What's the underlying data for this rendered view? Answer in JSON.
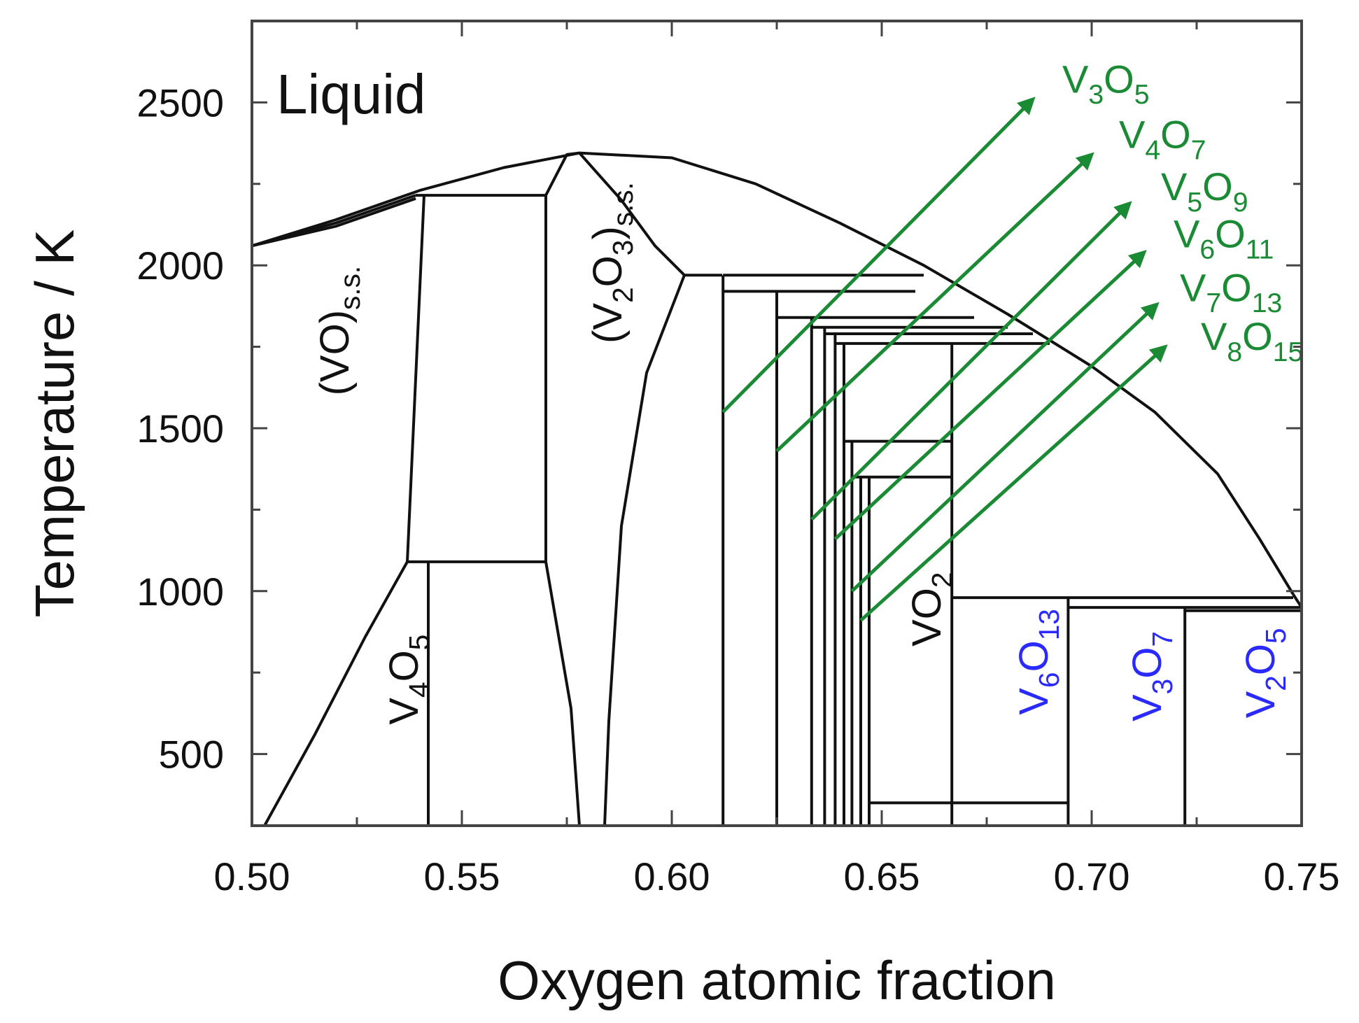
{
  "chart_data": {
    "type": "line",
    "title": "",
    "xlabel": "Oxygen atomic fraction",
    "ylabel": "Temperature / K",
    "xlim": [
      0.5,
      0.75
    ],
    "ylim": [
      280,
      2750
    ],
    "xticks": [
      0.5,
      0.55,
      0.6,
      0.65,
      0.7,
      0.75
    ],
    "xtick_labels": [
      "0.50",
      "0.55",
      "0.60",
      "0.65",
      "0.70",
      "0.75"
    ],
    "yticks": [
      500,
      1000,
      1500,
      2000,
      2500
    ],
    "ytick_labels": [
      "500",
      "1000",
      "1500",
      "2000",
      "2500"
    ],
    "grid": false,
    "region_label": "Liquid",
    "colors": {
      "boundary": "#111111",
      "arrows": "#1a8a35",
      "phase_blue": "#2a2aff"
    },
    "series": [
      {
        "values": [
          [
            0.5,
            2060
          ],
          [
            0.52,
            2140
          ],
          [
            0.54,
            2230
          ],
          [
            0.56,
            2300
          ],
          [
            0.578,
            2345
          ],
          [
            0.6,
            2330
          ],
          [
            0.62,
            2250
          ],
          [
            0.64,
            2130
          ],
          [
            0.66,
            2000
          ],
          [
            0.68,
            1850
          ],
          [
            0.7,
            1690
          ],
          [
            0.715,
            1550
          ],
          [
            0.73,
            1360
          ],
          [
            0.74,
            1160
          ],
          [
            0.748,
            990
          ]
        ]
      },
      {
        "values": [
          [
            0.5,
            2060
          ],
          [
            0.52,
            2130
          ],
          [
            0.539,
            2215
          ]
        ]
      },
      {
        "values": [
          [
            0.5,
            2060
          ],
          [
            0.52,
            2120
          ],
          [
            0.539,
            2205
          ]
        ]
      },
      {
        "values": [
          [
            0.539,
            2215
          ],
          [
            0.57,
            2215
          ]
        ]
      },
      {
        "values": [
          [
            0.541,
            2215
          ],
          [
            0.537,
            1090
          ]
        ]
      },
      {
        "values": [
          [
            0.57,
            2215
          ],
          [
            0.57,
            1090
          ]
        ]
      },
      {
        "values": [
          [
            0.537,
            1090
          ],
          [
            0.57,
            1090
          ]
        ]
      },
      {
        "values": [
          [
            0.57,
            2215
          ],
          [
            0.575,
            2340
          ],
          [
            0.578,
            2345
          ]
        ]
      },
      {
        "values": [
          [
            0.578,
            2345
          ],
          [
            0.588,
            2200
          ],
          [
            0.596,
            2060
          ],
          [
            0.603,
            1970
          ],
          [
            0.612,
            1970
          ]
        ]
      },
      {
        "values": [
          [
            0.503,
            280
          ],
          [
            0.515,
            560
          ],
          [
            0.527,
            860
          ],
          [
            0.537,
            1090
          ]
        ]
      },
      {
        "values": [
          [
            0.542,
            1090
          ],
          [
            0.542,
            280
          ]
        ]
      },
      {
        "values": [
          [
            0.57,
            1090
          ],
          [
            0.576,
            640
          ],
          [
            0.578,
            280
          ]
        ]
      },
      {
        "values": [
          [
            0.603,
            1970
          ],
          [
            0.594,
            1670
          ],
          [
            0.588,
            1200
          ],
          [
            0.585,
            600
          ],
          [
            0.584,
            280
          ]
        ]
      },
      {
        "values": [
          [
            0.6122,
            1970
          ],
          [
            0.6122,
            280
          ]
        ]
      },
      {
        "values": [
          [
            0.6122,
            1970
          ],
          [
            0.66,
            1970
          ]
        ]
      },
      {
        "values": [
          [
            0.6122,
            1920
          ],
          [
            0.658,
            1920
          ]
        ]
      },
      {
        "values": [
          [
            0.625,
            1920
          ],
          [
            0.625,
            280
          ]
        ]
      },
      {
        "values": [
          [
            0.625,
            1840
          ],
          [
            0.672,
            1840
          ]
        ]
      },
      {
        "values": [
          [
            0.6333,
            1840
          ],
          [
            0.6333,
            280
          ]
        ]
      },
      {
        "values": [
          [
            0.6333,
            1810
          ],
          [
            0.68,
            1810
          ]
        ]
      },
      {
        "values": [
          [
            0.6364,
            1810
          ],
          [
            0.6364,
            280
          ]
        ]
      },
      {
        "values": [
          [
            0.6364,
            1790
          ],
          [
            0.686,
            1790
          ]
        ]
      },
      {
        "values": [
          [
            0.6389,
            1790
          ],
          [
            0.6389,
            280
          ]
        ]
      },
      {
        "values": [
          [
            0.6389,
            1760
          ],
          [
            0.69,
            1760
          ]
        ]
      },
      {
        "values": [
          [
            0.641,
            1760
          ],
          [
            0.641,
            280
          ]
        ]
      },
      {
        "values": [
          [
            0.641,
            1460
          ],
          [
            0.6667,
            1460
          ]
        ]
      },
      {
        "values": [
          [
            0.6429,
            1460
          ],
          [
            0.6429,
            280
          ]
        ]
      },
      {
        "values": [
          [
            0.6429,
            1350
          ],
          [
            0.6667,
            1350
          ]
        ]
      },
      {
        "values": [
          [
            0.645,
            1350
          ],
          [
            0.645,
            280
          ]
        ]
      },
      {
        "values": [
          [
            0.647,
            1350
          ],
          [
            0.647,
            280
          ]
        ]
      },
      {
        "values": [
          [
            0.6667,
            1760
          ],
          [
            0.6667,
            280
          ]
        ]
      },
      {
        "values": [
          [
            0.647,
            350
          ],
          [
            0.6944,
            350
          ]
        ]
      },
      {
        "values": [
          [
            0.6667,
            980
          ],
          [
            0.748,
            980
          ]
        ]
      },
      {
        "values": [
          [
            0.6944,
            980
          ],
          [
            0.6944,
            280
          ]
        ]
      },
      {
        "values": [
          [
            0.6944,
            950
          ],
          [
            0.75,
            950
          ]
        ]
      },
      {
        "values": [
          [
            0.7222,
            950
          ],
          [
            0.7222,
            280
          ]
        ]
      },
      {
        "values": [
          [
            0.7222,
            940
          ],
          [
            0.75,
            940
          ]
        ]
      },
      {
        "values": [
          [
            0.748,
            990
          ],
          [
            0.75,
            950
          ]
        ]
      }
    ],
    "arrows": [
      {
        "from": [
          0.6122,
          1550
        ],
        "to": [
          0.686,
          2510
        ]
      },
      {
        "from": [
          0.625,
          1430
        ],
        "to": [
          0.7,
          2340
        ]
      },
      {
        "from": [
          0.6333,
          1220
        ],
        "to": [
          0.709,
          2190
        ]
      },
      {
        "from": [
          0.6389,
          1160
        ],
        "to": [
          0.7125,
          2040
        ]
      },
      {
        "from": [
          0.6429,
          1000
        ],
        "to": [
          0.7155,
          1880
        ]
      },
      {
        "from": [
          0.645,
          910
        ],
        "to": [
          0.7175,
          1750
        ]
      }
    ],
    "labels": [
      {
        "id": "vo-ss",
        "pieces": [
          [
            "(VO)",
            ""
          ],
          [
            "s.s.",
            "sub"
          ]
        ],
        "color": "black",
        "x": 0.523,
        "y": 1600,
        "rotate": -90,
        "size": 58
      },
      {
        "id": "v2o3-ss",
        "pieces": [
          [
            "(V",
            ""
          ],
          [
            "2",
            "sub"
          ],
          [
            "O",
            ""
          ],
          [
            "3",
            "sub"
          ],
          [
            ")",
            ""
          ],
          [
            "s.s.",
            "sub"
          ]
        ],
        "color": "black",
        "x": 0.588,
        "y": 1760,
        "rotate": -90,
        "size": 58
      },
      {
        "id": "v4o5",
        "pieces": [
          [
            "V",
            ""
          ],
          [
            "4",
            "sub"
          ],
          [
            "O",
            ""
          ],
          [
            "5",
            "sub"
          ]
        ],
        "color": "black",
        "x": 0.5395,
        "y": 590,
        "rotate": -90,
        "size": 58
      },
      {
        "id": "vo2",
        "pieces": [
          [
            "VO",
            ""
          ],
          [
            "2",
            "sub"
          ]
        ],
        "color": "black",
        "x": 0.664,
        "y": 830,
        "rotate": -90,
        "size": 58
      },
      {
        "id": "v6o13",
        "pieces": [
          [
            "V",
            ""
          ],
          [
            "6",
            "sub"
          ],
          [
            "O",
            ""
          ],
          [
            "13",
            "sub"
          ]
        ],
        "color": "blue",
        "x": 0.6895,
        "y": 620,
        "rotate": -90,
        "size": 58
      },
      {
        "id": "v3o7",
        "pieces": [
          [
            "V",
            ""
          ],
          [
            "3",
            "sub"
          ],
          [
            "O",
            ""
          ],
          [
            "7",
            "sub"
          ]
        ],
        "color": "blue",
        "x": 0.7165,
        "y": 600,
        "rotate": -90,
        "size": 58
      },
      {
        "id": "v2o5",
        "pieces": [
          [
            "V",
            ""
          ],
          [
            "2",
            "sub"
          ],
          [
            "O",
            ""
          ],
          [
            "5",
            "sub"
          ]
        ],
        "color": "blue",
        "x": 0.7435,
        "y": 610,
        "rotate": -90,
        "size": 58
      },
      {
        "id": "v3o5",
        "pieces": [
          [
            "V",
            ""
          ],
          [
            "3",
            "sub"
          ],
          [
            "O",
            ""
          ],
          [
            "5",
            "sub"
          ]
        ],
        "color": "green",
        "x": 0.693,
        "y": 2530,
        "rotate": 0,
        "size": 56
      },
      {
        "id": "v4o7",
        "pieces": [
          [
            "V",
            ""
          ],
          [
            "4",
            "sub"
          ],
          [
            "O",
            ""
          ],
          [
            "7",
            "sub"
          ]
        ],
        "color": "green",
        "x": 0.7065,
        "y": 2360,
        "rotate": 0,
        "size": 56
      },
      {
        "id": "v5o9",
        "pieces": [
          [
            "V",
            ""
          ],
          [
            "5",
            "sub"
          ],
          [
            "O",
            ""
          ],
          [
            "9",
            "sub"
          ]
        ],
        "color": "green",
        "x": 0.7165,
        "y": 2200,
        "rotate": 0,
        "size": 56
      },
      {
        "id": "v6o11",
        "pieces": [
          [
            "V",
            ""
          ],
          [
            "6",
            "sub"
          ],
          [
            "O",
            ""
          ],
          [
            "11",
            "sub"
          ]
        ],
        "color": "green",
        "x": 0.7195,
        "y": 2055,
        "rotate": 0,
        "size": 56
      },
      {
        "id": "v7o13",
        "pieces": [
          [
            "V",
            ""
          ],
          [
            "7",
            "sub"
          ],
          [
            "O",
            ""
          ],
          [
            "13",
            "sub"
          ]
        ],
        "color": "green",
        "x": 0.721,
        "y": 1890,
        "rotate": 0,
        "size": 56
      },
      {
        "id": "v8o15",
        "pieces": [
          [
            "V",
            ""
          ],
          [
            "8",
            "sub"
          ],
          [
            "O",
            ""
          ],
          [
            "15",
            "sub"
          ]
        ],
        "color": "green",
        "x": 0.726,
        "y": 1740,
        "rotate": 0,
        "size": 56
      }
    ]
  }
}
